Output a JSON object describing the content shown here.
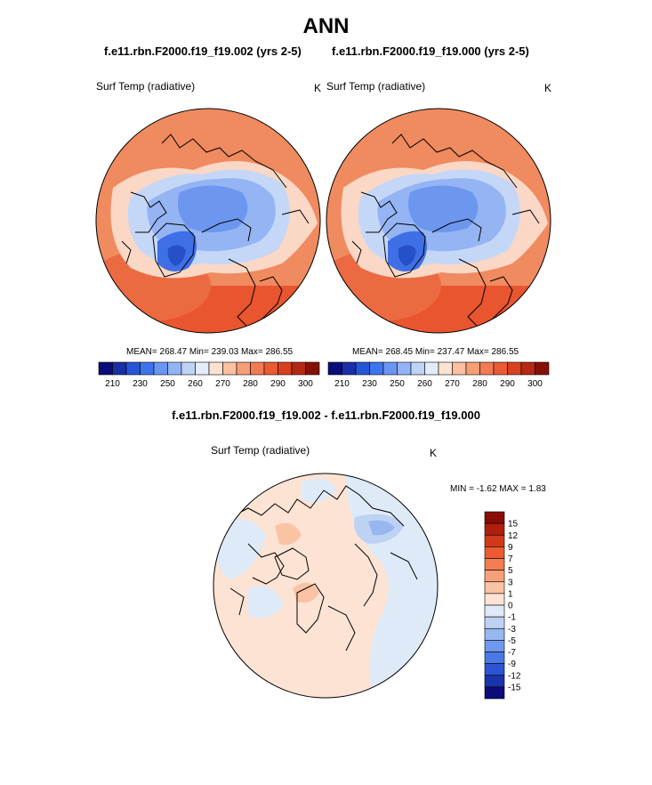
{
  "title": "ANN",
  "panels": [
    {
      "case": "f.e11.rbn.F2000.f19_f19.002 (yrs 2-5)",
      "variable": "Surf Temp (radiative)",
      "units": "K",
      "stats": "MEAN= 268.47  Min= 239.03  Max= 286.55"
    },
    {
      "case": "f.e11.rbn.F2000.f19_f19.000 (yrs 2-5)",
      "variable": "Surf Temp (radiative)",
      "units": "K",
      "stats": "MEAN= 268.45  Min= 237.47  Max= 286.55"
    }
  ],
  "colorbar": {
    "colors": [
      "#0b0c7a",
      "#1a2ea8",
      "#2455d6",
      "#3d74ee",
      "#6a96f1",
      "#93b3f4",
      "#bfd2f7",
      "#e2ecfb",
      "#fde2d2",
      "#f9c0a1",
      "#f59e77",
      "#f27b53",
      "#eb5a33",
      "#d9401f",
      "#b52813",
      "#861006"
    ],
    "tick_labels": [
      "210",
      "230",
      "250",
      "260",
      "270",
      "280",
      "290",
      "300"
    ]
  },
  "difference": {
    "title": "f.e11.rbn.F2000.f19_f19.002 - f.e11.rbn.F2000.f19_f19.000",
    "variable": "Surf Temp (radiative)",
    "units": "K",
    "stats": "MIN =  -1.62 MAX =   1.83",
    "colorbar": {
      "colors": [
        "#8a0c06",
        "#b01e0e",
        "#d2391b",
        "#eb5a30",
        "#f37c52",
        "#f6a079",
        "#f9c3a4",
        "#fde3d3",
        "#dfeaf8",
        "#bed2f4",
        "#98b7f1",
        "#6f98ee",
        "#4a78e7",
        "#2c55d3",
        "#1b33ab",
        "#0c0c78"
      ],
      "labels": [
        "15",
        "12",
        "9",
        "7",
        "5",
        "3",
        "1",
        "0",
        "-1",
        "-3",
        "-5",
        "-7",
        "-9",
        "-12",
        "-15"
      ]
    }
  }
}
